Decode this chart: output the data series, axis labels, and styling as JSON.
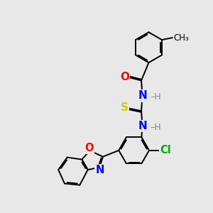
{
  "bg_color": "#e8e8e8",
  "bond_color": "#000000",
  "bond_width": 1.4,
  "atom_colors": {
    "O": "#ff0000",
    "N": "#0000ff",
    "S": "#cccc00",
    "Cl": "#00aa00",
    "H": "#888888",
    "C": "#000000"
  },
  "font_size": 10.5,
  "methyl_label": "CH₃",
  "o_label": "O",
  "s_label": "S",
  "n_label": "N",
  "h_label": "H",
  "cl_label": "Cl"
}
